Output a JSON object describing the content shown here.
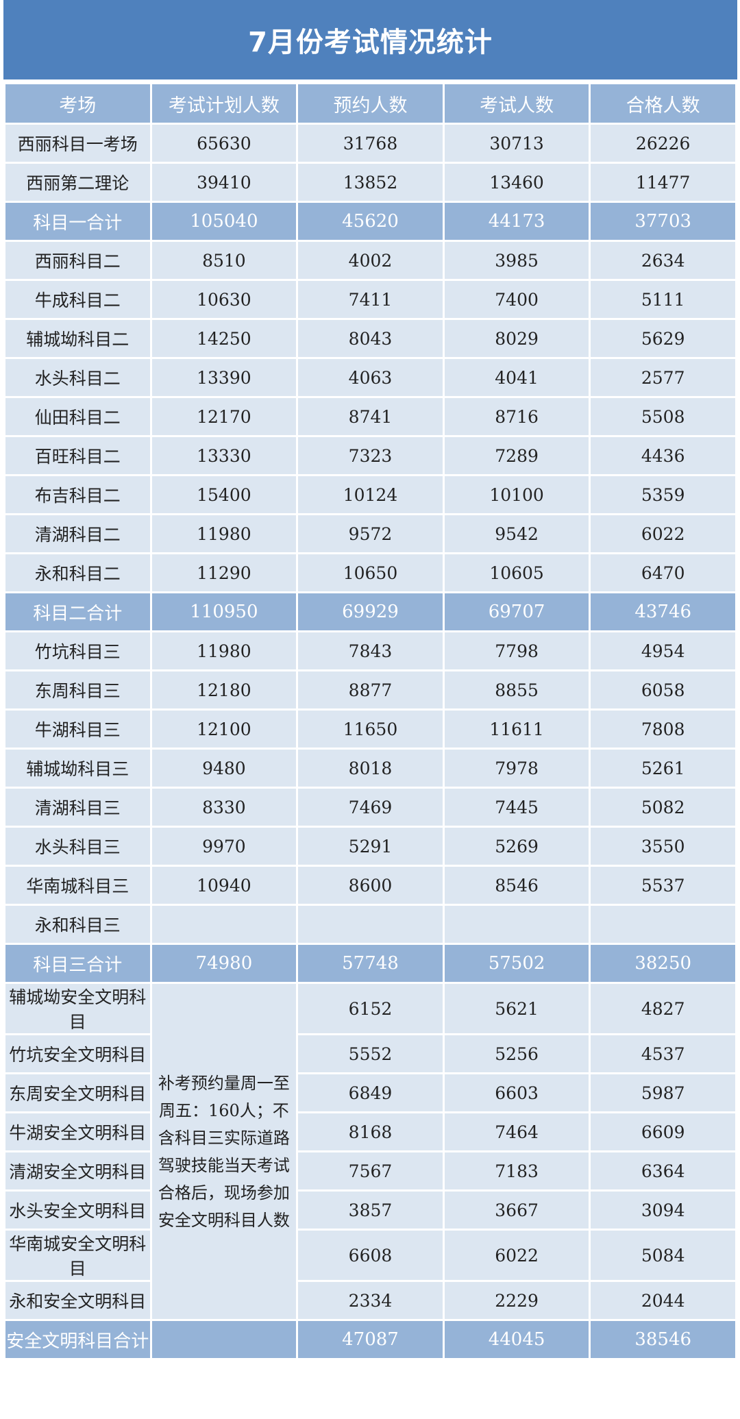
{
  "title": "7月份考试情况统计",
  "colors": {
    "title_bg": "#4f81bd",
    "header_bg": "#95b3d7",
    "row_bg": "#dce6f1"
  },
  "headers": [
    "考场",
    "考试计划人数",
    "预约人数",
    "考试人数",
    "合格人数"
  ],
  "note": "补考预约量周一至周五：160人；不含科目三实际道路驾驶技能当天考试合格后，现场参加安全文明科目人数",
  "rows": [
    {
      "name": "西丽科目一考场",
      "plan": "65630",
      "booked": "31768",
      "tested": "30713",
      "passed": "26226"
    },
    {
      "name": "西丽第二理论",
      "plan": "39410",
      "booked": "13852",
      "tested": "13460",
      "passed": "11477"
    },
    {
      "name": "科目一合计",
      "plan": "105040",
      "booked": "45620",
      "tested": "44173",
      "passed": "37703",
      "subtotal": true
    },
    {
      "name": "西丽科目二",
      "plan": "8510",
      "booked": "4002",
      "tested": "3985",
      "passed": "2634"
    },
    {
      "name": "牛成科目二",
      "plan": "10630",
      "booked": "7411",
      "tested": "7400",
      "passed": "5111"
    },
    {
      "name": "辅城坳科目二",
      "plan": "14250",
      "booked": "8043",
      "tested": "8029",
      "passed": "5629"
    },
    {
      "name": "水头科目二",
      "plan": "13390",
      "booked": "4063",
      "tested": "4041",
      "passed": "2577"
    },
    {
      "name": "仙田科目二",
      "plan": "12170",
      "booked": "8741",
      "tested": "8716",
      "passed": "5508"
    },
    {
      "name": "百旺科目二",
      "plan": "13330",
      "booked": "7323",
      "tested": "7289",
      "passed": "4436"
    },
    {
      "name": "布吉科目二",
      "plan": "15400",
      "booked": "10124",
      "tested": "10100",
      "passed": "5359"
    },
    {
      "name": "清湖科目二",
      "plan": "11980",
      "booked": "9572",
      "tested": "9542",
      "passed": "6022"
    },
    {
      "name": "永和科目二",
      "plan": "11290",
      "booked": "10650",
      "tested": "10605",
      "passed": "6470"
    },
    {
      "name": "科目二合计",
      "plan": "110950",
      "booked": "69929",
      "tested": "69707",
      "passed": "43746",
      "subtotal": true
    },
    {
      "name": "竹坑科目三",
      "plan": "11980",
      "booked": "7843",
      "tested": "7798",
      "passed": "4954"
    },
    {
      "name": "东周科目三",
      "plan": "12180",
      "booked": "8877",
      "tested": "8855",
      "passed": "6058"
    },
    {
      "name": "牛湖科目三",
      "plan": "12100",
      "booked": "11650",
      "tested": "11611",
      "passed": "7808"
    },
    {
      "name": "辅城坳科目三",
      "plan": "9480",
      "booked": "8018",
      "tested": "7978",
      "passed": "5261"
    },
    {
      "name": "清湖科目三",
      "plan": "8330",
      "booked": "7469",
      "tested": "7445",
      "passed": "5082"
    },
    {
      "name": "水头科目三",
      "plan": "9970",
      "booked": "5291",
      "tested": "5269",
      "passed": "3550"
    },
    {
      "name": "华南城科目三",
      "plan": "10940",
      "booked": "8600",
      "tested": "8546",
      "passed": "5537"
    },
    {
      "name": "永和科目三",
      "plan": "",
      "booked": "",
      "tested": "",
      "passed": ""
    },
    {
      "name": "科目三合计",
      "plan": "74980",
      "booked": "57748",
      "tested": "57502",
      "passed": "38250",
      "subtotal": true
    },
    {
      "name": "辅城坳安全文明科目",
      "booked": "6152",
      "tested": "5621",
      "passed": "4827",
      "safety": true
    },
    {
      "name": "竹坑安全文明科目",
      "booked": "5552",
      "tested": "5256",
      "passed": "4537",
      "safety": true
    },
    {
      "name": "东周安全文明科目",
      "booked": "6849",
      "tested": "6603",
      "passed": "5987",
      "safety": true
    },
    {
      "name": "牛湖安全文明科目",
      "booked": "8168",
      "tested": "7464",
      "passed": "6609",
      "safety": true
    },
    {
      "name": "清湖安全文明科目",
      "booked": "7567",
      "tested": "7183",
      "passed": "6364",
      "safety": true
    },
    {
      "name": "水头安全文明科目",
      "booked": "3857",
      "tested": "3667",
      "passed": "3094",
      "safety": true
    },
    {
      "name": "华南城安全文明科目",
      "booked": "6608",
      "tested": "6022",
      "passed": "5084",
      "safety": true
    },
    {
      "name": "永和安全文明科目",
      "booked": "2334",
      "tested": "2229",
      "passed": "2044",
      "safety": true
    },
    {
      "name": "安全文明科目合计",
      "plan": "",
      "booked": "47087",
      "tested": "44045",
      "passed": "38546",
      "subtotal": true
    }
  ]
}
